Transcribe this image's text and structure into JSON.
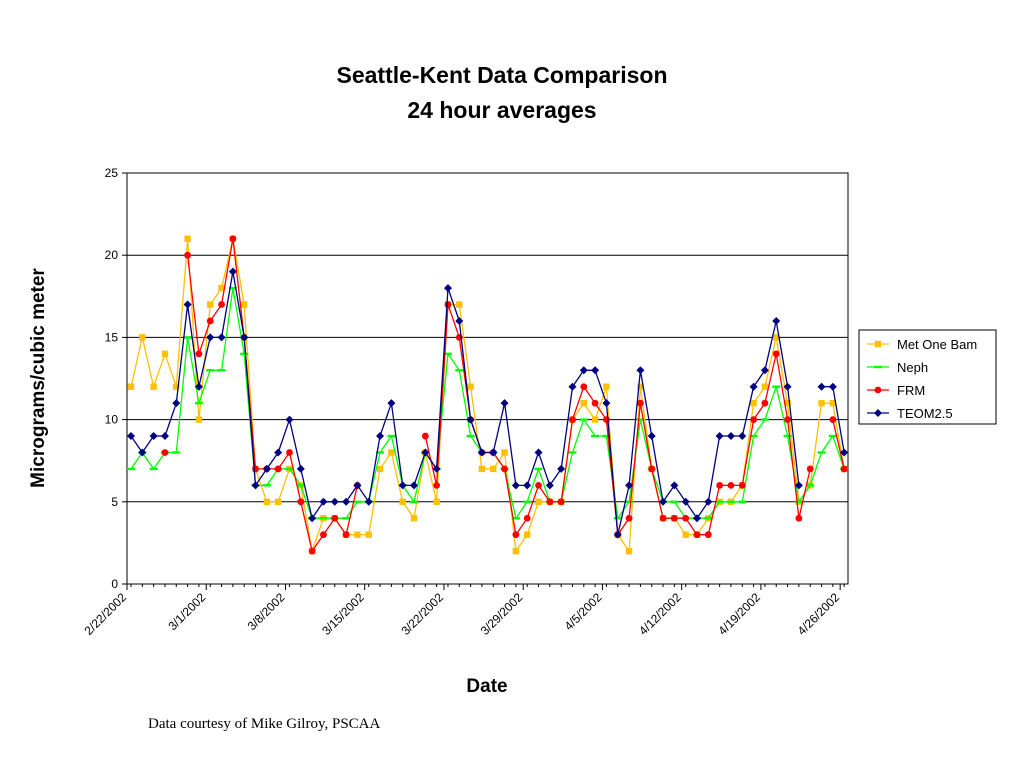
{
  "chart_data": {
    "type": "line",
    "title": "Seattle-Kent Data Comparison",
    "subtitle": "24 hour averages",
    "xlabel": "Date",
    "ylabel": "Micrograms/cubic meter",
    "ylim": [
      0,
      25
    ],
    "yticks": [
      "0",
      "5",
      "10",
      "15",
      "20",
      "25"
    ],
    "grid": "horizontal",
    "legend_position": "right",
    "x_tick_labels": [
      "2/22/2002",
      "3/1/2002",
      "3/8/2002",
      "3/15/2002",
      "3/22/2002",
      "3/29/2002",
      "4/5/2002",
      "4/12/2002",
      "4/19/2002",
      "4/26/2002"
    ],
    "x": [
      0,
      1,
      2,
      3,
      4,
      5,
      6,
      7,
      8,
      9,
      10,
      11,
      12,
      13,
      14,
      15,
      16,
      17,
      18,
      19,
      20,
      21,
      22,
      23,
      24,
      25,
      26,
      27,
      28,
      29,
      30,
      31,
      32,
      33,
      34,
      35,
      36,
      37,
      38,
      39,
      40,
      41,
      42,
      43,
      44,
      45,
      46,
      47,
      48,
      49,
      50,
      51,
      52,
      53,
      54,
      55,
      56,
      57,
      58,
      59,
      60,
      61,
      62,
      63
    ],
    "series": [
      {
        "name": "Met One Bam",
        "color": "#ffc000",
        "marker": "square",
        "values": [
          12,
          15,
          12,
          14,
          12,
          21,
          10,
          17,
          18,
          21,
          17,
          7,
          5,
          5,
          7,
          6,
          2,
          4,
          4,
          3,
          3,
          3,
          7,
          8,
          5,
          4,
          8,
          5,
          17,
          17,
          12,
          7,
          7,
          8,
          2,
          3,
          5,
          5,
          5,
          10,
          11,
          10,
          12,
          3,
          2,
          12,
          7,
          4,
          4,
          3,
          3,
          4,
          5,
          5,
          6,
          11,
          12,
          15,
          11,
          5,
          6,
          11,
          11,
          7
        ]
      },
      {
        "name": "Neph",
        "color": "#00ff00",
        "marker": "dash",
        "values": [
          7,
          8,
          7,
          8,
          8,
          15,
          11,
          13,
          13,
          18,
          14,
          6,
          6,
          7,
          7,
          6,
          4,
          4,
          4,
          4,
          5,
          5,
          8,
          9,
          6,
          5,
          8,
          7,
          14,
          13,
          9,
          8,
          8,
          7,
          4,
          5,
          7,
          5,
          5,
          8,
          10,
          9,
          9,
          4,
          5,
          10,
          7,
          5,
          5,
          4,
          4,
          4,
          5,
          5,
          5,
          9,
          10,
          12,
          9,
          5,
          6,
          8,
          9,
          7
        ]
      },
      {
        "name": "FRM",
        "color": "#ff0000",
        "marker": "circle",
        "values": [
          null,
          null,
          null,
          8,
          null,
          20,
          14,
          16,
          17,
          21,
          15,
          7,
          7,
          7,
          8,
          5,
          2,
          3,
          4,
          3,
          6,
          null,
          null,
          null,
          null,
          null,
          9,
          6,
          17,
          15,
          10,
          8,
          8,
          7,
          3,
          4,
          6,
          5,
          5,
          10,
          12,
          11,
          10,
          3,
          4,
          11,
          7,
          4,
          4,
          4,
          3,
          3,
          6,
          6,
          6,
          10,
          11,
          14,
          10,
          4,
          7,
          null,
          10,
          7
        ]
      },
      {
        "name": "TEOM2.5",
        "color": "#000080",
        "marker": "diamond",
        "values": [
          9,
          8,
          9,
          9,
          11,
          17,
          12,
          15,
          15,
          19,
          15,
          6,
          7,
          8,
          10,
          7,
          4,
          5,
          5,
          5,
          6,
          5,
          9,
          11,
          6,
          6,
          8,
          7,
          18,
          16,
          10,
          8,
          8,
          11,
          6,
          6,
          8,
          6,
          7,
          12,
          13,
          13,
          11,
          3,
          6,
          13,
          9,
          5,
          6,
          5,
          4,
          5,
          9,
          9,
          9,
          12,
          13,
          16,
          12,
          6,
          null,
          12,
          12,
          8
        ]
      }
    ]
  },
  "footer": {
    "source_note": "Data courtesy of Mike Gilroy, PSCAA"
  }
}
